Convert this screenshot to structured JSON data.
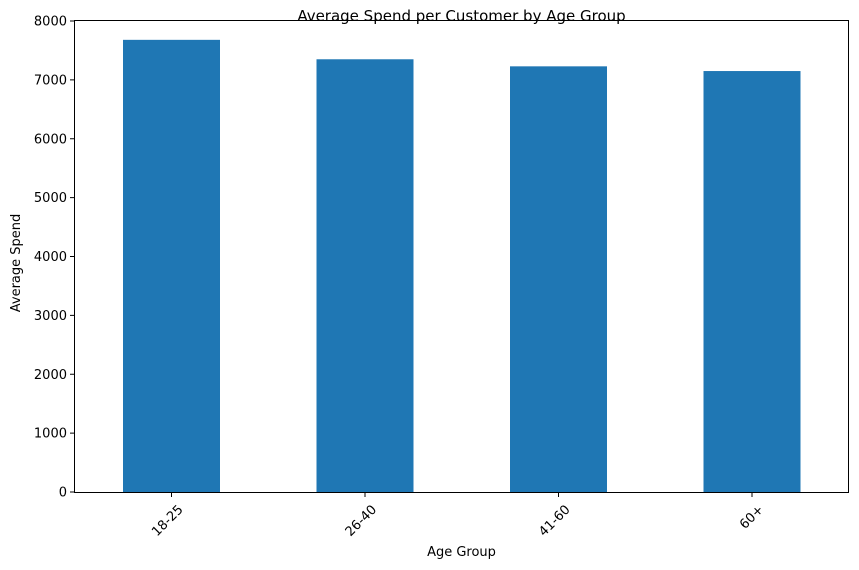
{
  "chart_data": {
    "type": "bar",
    "title": "Average Spend per Customer by Age Group",
    "xlabel": "Age Group",
    "ylabel": "Average Spend",
    "categories": [
      "18-25",
      "26-40",
      "41-60",
      "60+"
    ],
    "values": [
      7680,
      7350,
      7230,
      7150
    ],
    "ylim": [
      0,
      8000
    ],
    "yticks": [
      0,
      1000,
      2000,
      3000,
      4000,
      5000,
      6000,
      7000,
      8000
    ],
    "xtick_rotation": 45,
    "grid": false,
    "legend": "none",
    "bar_color": "#1f77b4"
  }
}
